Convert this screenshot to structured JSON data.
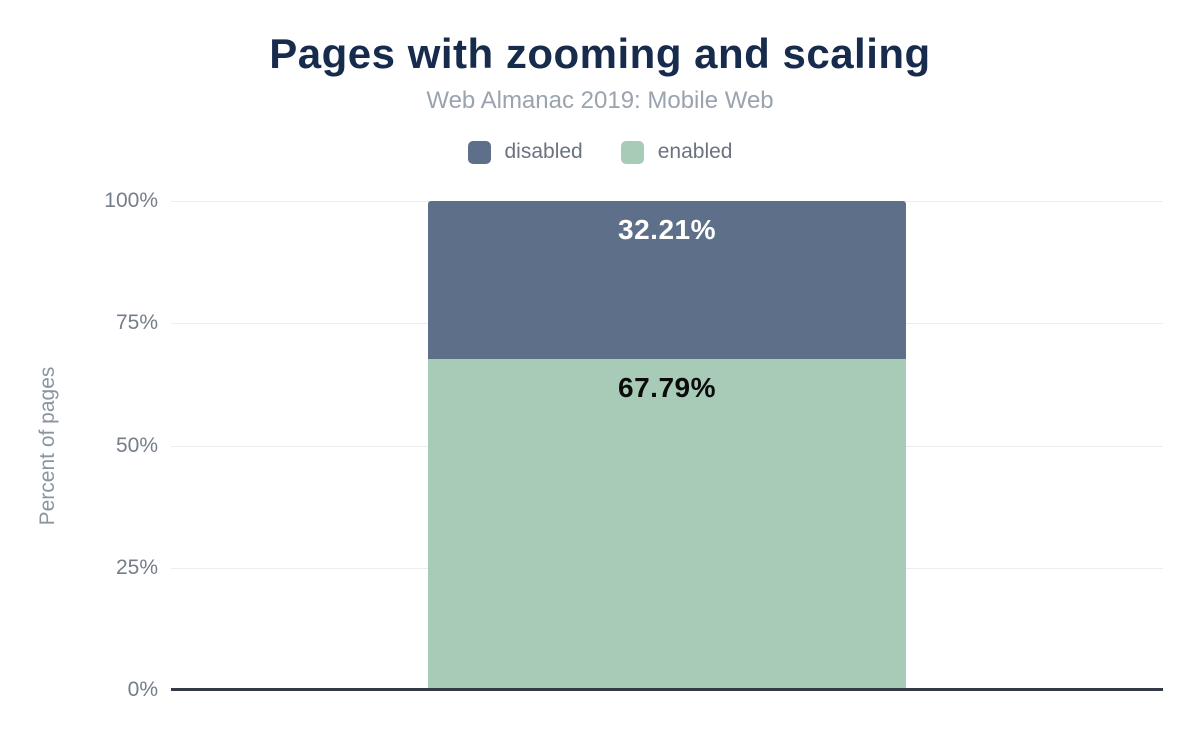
{
  "chart_data": {
    "type": "bar",
    "stacked": true,
    "title": "Pages with zooming and scaling",
    "subtitle": "Web Almanac 2019: Mobile Web",
    "ylabel": "Percent of pages",
    "xlabel": "",
    "categories": [
      ""
    ],
    "series": [
      {
        "name": "disabled",
        "values": [
          32.21
        ],
        "label": "32.21%",
        "color": "#5e7089",
        "label_color": "#ffffff"
      },
      {
        "name": "enabled",
        "values": [
          67.79
        ],
        "label": "67.79%",
        "color": "#a8cbb7",
        "label_color": "#0b0b0b"
      }
    ],
    "ylim": [
      0,
      100
    ],
    "yticks": [
      {
        "value": 100,
        "label": "100%"
      },
      {
        "value": 75,
        "label": "75%"
      },
      {
        "value": 50,
        "label": "50%"
      },
      {
        "value": 25,
        "label": "25%"
      },
      {
        "value": 0,
        "label": "0%"
      }
    ],
    "grid": "horizontal",
    "legend_position": "top"
  },
  "colors": {
    "title": "#172b4d",
    "subtitle": "#9aa3ae",
    "legend_text": "#6b7380",
    "tick_text": "#747d89",
    "gridline": "#ebedef",
    "axis_line": "#333a45",
    "background": "#ffffff"
  }
}
